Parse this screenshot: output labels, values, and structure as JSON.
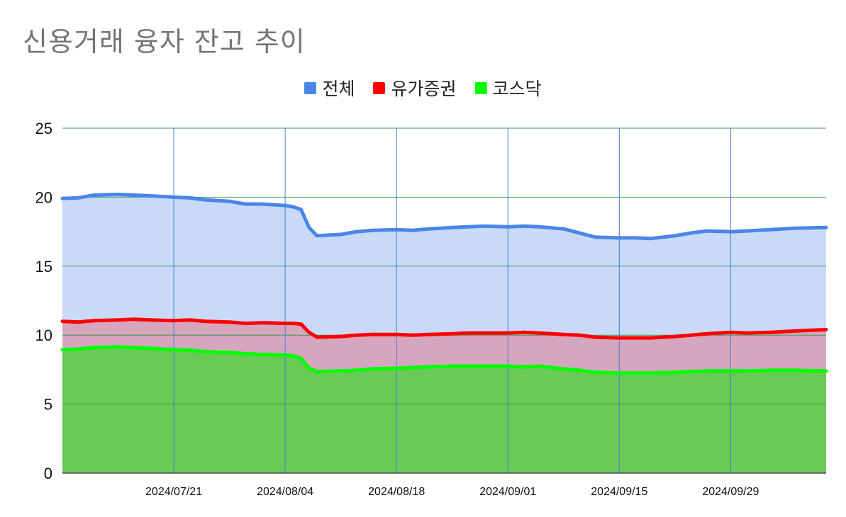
{
  "chart_data": {
    "type": "area",
    "title": "신용거래 융자 잔고 추이",
    "xlabel": "",
    "ylabel": "",
    "ylim": [
      0,
      25
    ],
    "yticks": [
      0,
      5,
      10,
      15,
      20,
      25
    ],
    "x_range": [
      "2024-07-07",
      "2024-10-11"
    ],
    "xticks": [
      "2024/07/21",
      "2024/08/04",
      "2024/08/18",
      "2024/09/01",
      "2024/09/15",
      "2024/09/29"
    ],
    "legend_position": "top",
    "grid": true,
    "series": [
      {
        "name": "전체",
        "color": "#4a86e8",
        "fill": "#c9daf8",
        "points": [
          [
            "2024-07-07",
            19.9
          ],
          [
            "2024-07-09",
            19.95
          ],
          [
            "2024-07-11",
            20.15
          ],
          [
            "2024-07-14",
            20.2
          ],
          [
            "2024-07-16",
            20.15
          ],
          [
            "2024-07-18",
            20.1
          ],
          [
            "2024-07-21",
            20.0
          ],
          [
            "2024-07-23",
            19.95
          ],
          [
            "2024-07-25",
            19.8
          ],
          [
            "2024-07-28",
            19.7
          ],
          [
            "2024-07-30",
            19.5
          ],
          [
            "2024-08-01",
            19.5
          ],
          [
            "2024-08-04",
            19.4
          ],
          [
            "2024-08-05",
            19.3
          ],
          [
            "2024-08-06",
            19.1
          ],
          [
            "2024-08-07",
            17.8
          ],
          [
            "2024-08-08",
            17.2
          ],
          [
            "2024-08-11",
            17.3
          ],
          [
            "2024-08-13",
            17.5
          ],
          [
            "2024-08-15",
            17.6
          ],
          [
            "2024-08-18",
            17.65
          ],
          [
            "2024-08-20",
            17.6
          ],
          [
            "2024-08-22",
            17.7
          ],
          [
            "2024-08-25",
            17.8
          ],
          [
            "2024-08-27",
            17.85
          ],
          [
            "2024-08-29",
            17.9
          ],
          [
            "2024-09-01",
            17.85
          ],
          [
            "2024-09-03",
            17.9
          ],
          [
            "2024-09-05",
            17.85
          ],
          [
            "2024-09-08",
            17.7
          ],
          [
            "2024-09-10",
            17.4
          ],
          [
            "2024-09-12",
            17.1
          ],
          [
            "2024-09-15",
            17.05
          ],
          [
            "2024-09-17",
            17.05
          ],
          [
            "2024-09-19",
            17.0
          ],
          [
            "2024-09-22",
            17.2
          ],
          [
            "2024-09-24",
            17.4
          ],
          [
            "2024-09-26",
            17.55
          ],
          [
            "2024-09-29",
            17.5
          ],
          [
            "2024-10-01",
            17.55
          ],
          [
            "2024-10-04",
            17.65
          ],
          [
            "2024-10-07",
            17.75
          ],
          [
            "2024-10-11",
            17.8
          ]
        ]
      },
      {
        "name": "유가증권",
        "color": "#ff0000",
        "fill": "#d5a6bd",
        "points": [
          [
            "2024-07-07",
            11.0
          ],
          [
            "2024-07-09",
            10.95
          ],
          [
            "2024-07-11",
            11.05
          ],
          [
            "2024-07-14",
            11.1
          ],
          [
            "2024-07-16",
            11.15
          ],
          [
            "2024-07-18",
            11.1
          ],
          [
            "2024-07-21",
            11.05
          ],
          [
            "2024-07-23",
            11.1
          ],
          [
            "2024-07-25",
            11.0
          ],
          [
            "2024-07-28",
            10.95
          ],
          [
            "2024-07-30",
            10.85
          ],
          [
            "2024-08-01",
            10.9
          ],
          [
            "2024-08-04",
            10.85
          ],
          [
            "2024-08-05",
            10.85
          ],
          [
            "2024-08-06",
            10.8
          ],
          [
            "2024-08-07",
            10.2
          ],
          [
            "2024-08-08",
            9.85
          ],
          [
            "2024-08-11",
            9.9
          ],
          [
            "2024-08-13",
            10.0
          ],
          [
            "2024-08-15",
            10.05
          ],
          [
            "2024-08-18",
            10.05
          ],
          [
            "2024-08-20",
            10.0
          ],
          [
            "2024-08-22",
            10.05
          ],
          [
            "2024-08-25",
            10.1
          ],
          [
            "2024-08-27",
            10.15
          ],
          [
            "2024-08-29",
            10.15
          ],
          [
            "2024-09-01",
            10.15
          ],
          [
            "2024-09-03",
            10.2
          ],
          [
            "2024-09-05",
            10.15
          ],
          [
            "2024-09-08",
            10.05
          ],
          [
            "2024-09-10",
            10.0
          ],
          [
            "2024-09-12",
            9.85
          ],
          [
            "2024-09-15",
            9.8
          ],
          [
            "2024-09-17",
            9.8
          ],
          [
            "2024-09-19",
            9.8
          ],
          [
            "2024-09-22",
            9.9
          ],
          [
            "2024-09-24",
            10.0
          ],
          [
            "2024-09-26",
            10.1
          ],
          [
            "2024-09-29",
            10.2
          ],
          [
            "2024-10-01",
            10.15
          ],
          [
            "2024-10-04",
            10.2
          ],
          [
            "2024-10-07",
            10.3
          ],
          [
            "2024-10-11",
            10.4
          ]
        ]
      },
      {
        "name": "코스닥",
        "color": "#00ff00",
        "fill": "#6aca56",
        "points": [
          [
            "2024-07-07",
            8.95
          ],
          [
            "2024-07-09",
            9.0
          ],
          [
            "2024-07-11",
            9.1
          ],
          [
            "2024-07-14",
            9.15
          ],
          [
            "2024-07-16",
            9.1
          ],
          [
            "2024-07-18",
            9.05
          ],
          [
            "2024-07-21",
            8.95
          ],
          [
            "2024-07-23",
            8.9
          ],
          [
            "2024-07-25",
            8.8
          ],
          [
            "2024-07-28",
            8.75
          ],
          [
            "2024-07-30",
            8.65
          ],
          [
            "2024-08-01",
            8.6
          ],
          [
            "2024-08-04",
            8.55
          ],
          [
            "2024-08-05",
            8.5
          ],
          [
            "2024-08-06",
            8.3
          ],
          [
            "2024-08-07",
            7.6
          ],
          [
            "2024-08-08",
            7.35
          ],
          [
            "2024-08-11",
            7.4
          ],
          [
            "2024-08-13",
            7.45
          ],
          [
            "2024-08-15",
            7.55
          ],
          [
            "2024-08-18",
            7.6
          ],
          [
            "2024-08-20",
            7.65
          ],
          [
            "2024-08-22",
            7.7
          ],
          [
            "2024-08-25",
            7.75
          ],
          [
            "2024-08-27",
            7.75
          ],
          [
            "2024-08-29",
            7.75
          ],
          [
            "2024-09-01",
            7.75
          ],
          [
            "2024-09-03",
            7.7
          ],
          [
            "2024-09-05",
            7.75
          ],
          [
            "2024-09-08",
            7.55
          ],
          [
            "2024-09-10",
            7.45
          ],
          [
            "2024-09-12",
            7.3
          ],
          [
            "2024-09-15",
            7.25
          ],
          [
            "2024-09-17",
            7.25
          ],
          [
            "2024-09-19",
            7.25
          ],
          [
            "2024-09-22",
            7.3
          ],
          [
            "2024-09-24",
            7.35
          ],
          [
            "2024-09-26",
            7.4
          ],
          [
            "2024-09-29",
            7.4
          ],
          [
            "2024-10-01",
            7.4
          ],
          [
            "2024-10-04",
            7.45
          ],
          [
            "2024-10-07",
            7.45
          ],
          [
            "2024-10-11",
            7.4
          ]
        ]
      }
    ]
  }
}
